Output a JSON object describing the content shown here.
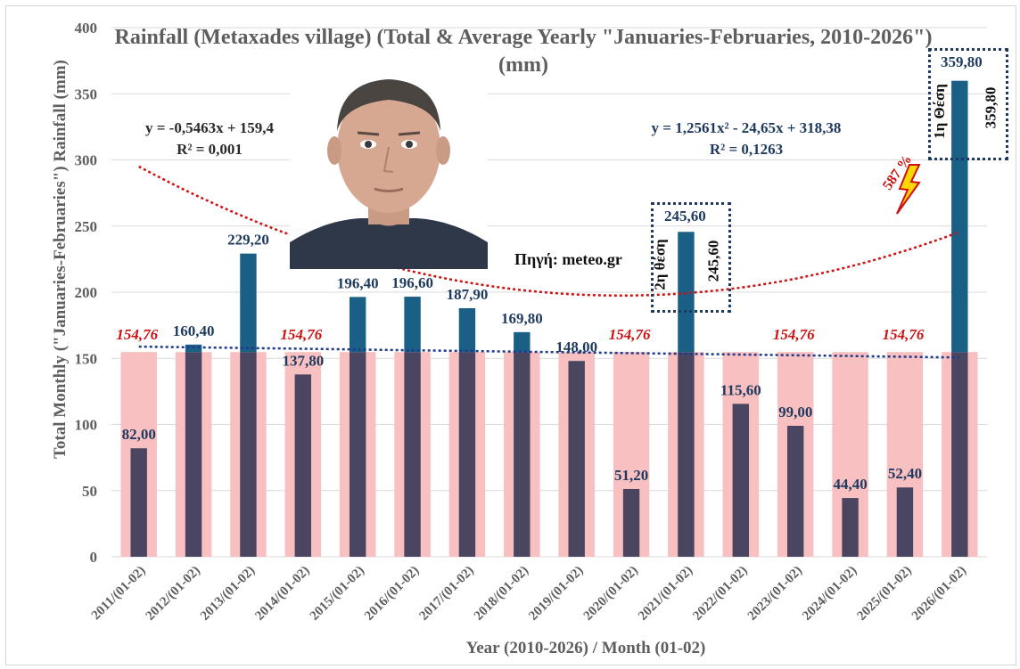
{
  "chart_data": {
    "type": "bar",
    "title": "Rainfall (Metaxades village) (Total & Average Yearly \"Januaries-Februaries, 2010-2026\") (mm)",
    "xlabel": "Year (2010-2026) / Month (01-02)",
    "ylabel": "Total Monthly (\"Januaries-Februaries\") Rainfall (mm)",
    "ylim": [
      0,
      400
    ],
    "yticks": [
      0,
      50,
      100,
      150,
      200,
      250,
      300,
      350,
      400
    ],
    "categories": [
      "2011/(01-02)",
      "2012/(01-02)",
      "2013/(01-02)",
      "2014/(01-02)",
      "2015/(01-02)",
      "2016/(01-02)",
      "2017/(01-02)",
      "2018/(01-02)",
      "2019/(01-02)",
      "2020/(01-02)",
      "2021/(01-02)",
      "2022/(01-02)",
      "2023/(01-02)",
      "2024/(01-02)",
      "2025/(01-02)",
      "2026/(01-02)"
    ],
    "series": [
      {
        "values": [
          82.0,
          160.4,
          229.2,
          137.8,
          196.4,
          196.6,
          187.9,
          169.8,
          148.0,
          51.2,
          245.6,
          115.6,
          99.0,
          44.4,
          52.4,
          359.8
        ],
        "labels": [
          "82,00",
          "160,40",
          "229,20",
          "137,80",
          "196,40",
          "196,60",
          "187,90",
          "169,80",
          "148,00",
          "51,20",
          "245,60",
          "115,60",
          "99,00",
          "44,40",
          "52,40",
          "359,80"
        ],
        "color": "#1a5f86",
        "color_below_average": "#4a4662"
      },
      {
        "values": [
          154.76,
          154.76,
          154.76,
          154.76,
          154.76,
          154.76,
          154.76,
          154.76,
          154.76,
          154.76,
          154.76,
          154.76,
          154.76,
          154.76,
          154.76,
          154.76
        ],
        "label": "154,76",
        "labeled_categories": [
          "2011/(01-02)",
          "2014/(01-02)",
          "2020/(01-02)",
          "2023/(01-02)",
          "2025/(01-02)"
        ],
        "color": "#f8c0c0"
      }
    ],
    "trendlines": [
      {
        "kind": "linear",
        "equation": "y = -0,5463x + 159,4",
        "r2": "R² = 0,001",
        "a": -0.5463,
        "b": 159.4,
        "color": "#1f3a8a"
      },
      {
        "kind": "polynomial",
        "equation": "y = 1,2561x² - 24,65x + 318,38",
        "r2": "R² = 0,1263",
        "a": 1.2561,
        "b": -24.65,
        "c": 318.38,
        "color": "#cc1111"
      }
    ],
    "grid": true,
    "legend": "none"
  },
  "annotations": {
    "source": "Πηγή: meteo.gr",
    "rank2": {
      "text": "2η θέση",
      "value": "245,60",
      "top_value": "245,60"
    },
    "rank1": {
      "text": "1η Θέση",
      "value": "359,80",
      "top_value": "359,80"
    },
    "increase": "587 %"
  },
  "colors": {
    "above_avg_bar": "#1a5f86",
    "below_avg_bar": "#4a4662",
    "average_bar": "#f8c0c0",
    "value_label": "#1f3a5f",
    "average_label": "#cc1111",
    "axis_text": "#5e5e5e"
  },
  "icons": {
    "lightning": "lightning-bolt-icon",
    "photo": "person-portrait"
  }
}
